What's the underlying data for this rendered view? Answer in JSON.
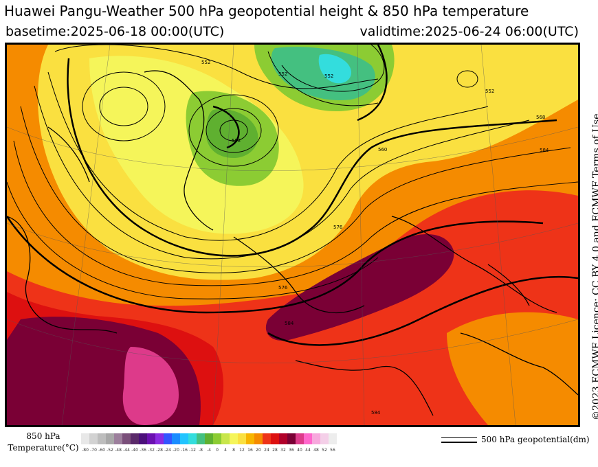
{
  "header": {
    "title": "Huawei Pangu-Weather 500 hPa geopotential height & 850 hPa temperature",
    "basetime": "basetime:2025-06-18 00:00(UTC)",
    "validtime": "validtime:2025-06-24 06:00(UTC)"
  },
  "credit": "©2023 ECMWF Licence: CC BY 4.0 and ECMWF Terms of Use",
  "legend": {
    "title_line1": "850 hPa",
    "title_line2": "Temperature(°C)",
    "ticks": [
      "-80",
      "-70",
      "-60",
      "-52",
      "-48",
      "-44",
      "-40",
      "-36",
      "-32",
      "-28",
      "-24",
      "-20",
      "-16",
      "-12",
      "-8",
      "-4",
      "0",
      "4",
      "8",
      "12",
      "16",
      "20",
      "24",
      "28",
      "32",
      "36",
      "40",
      "44",
      "48",
      "52",
      "56"
    ],
    "colors": [
      "#e8e8e8",
      "#d2d2d2",
      "#bdbdbd",
      "#a8a8a8",
      "#9c7f9c",
      "#7a4f7a",
      "#5a2a6a",
      "#4b0f7a",
      "#6a10b0",
      "#8a2be2",
      "#3355ff",
      "#1a8cff",
      "#22c4ff",
      "#33dddd",
      "#44c080",
      "#5fb030",
      "#8ccc33",
      "#c8e64b",
      "#f5f55a",
      "#fae040",
      "#f7b500",
      "#f58b00",
      "#ee3318",
      "#dd1010",
      "#b0002a",
      "#7a0035",
      "#dd3a8a",
      "#ff66cc",
      "#f7a8dd",
      "#f4cfe8",
      "#ededed"
    ],
    "contour_label": "500 hPa geopotential(dm)"
  },
  "map": {
    "contour_labels": [
      "552",
      "552",
      "552",
      "552",
      "560",
      "568",
      "576",
      "576",
      "584",
      "584",
      "552",
      "584"
    ]
  }
}
